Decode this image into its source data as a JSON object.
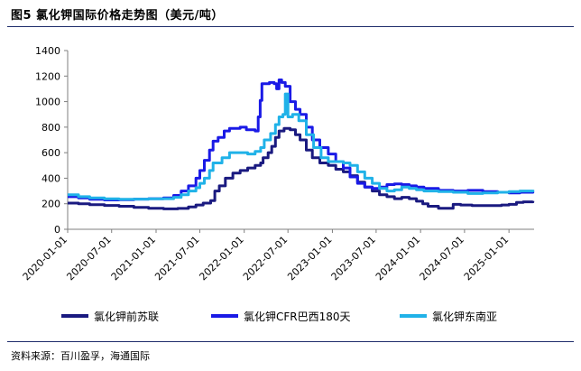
{
  "figure_title": "图5  氯化钾国际价格走势图（美元/吨）",
  "source_text": "资料来源：百川盈孚，海通国际",
  "chart_data": {
    "type": "line",
    "title": "",
    "xlabel": "",
    "ylabel": "",
    "ylim": [
      0,
      1400
    ],
    "yticks": [
      0,
      200,
      400,
      600,
      800,
      1000,
      1200,
      1400
    ],
    "xlim": [
      "2020-01-01",
      "2025-04-15"
    ],
    "xticks": [
      "2020-01-01",
      "2020-07-01",
      "2021-01-01",
      "2021-07-01",
      "2022-01-01",
      "2022-07-01",
      "2023-01-01",
      "2023-07-01",
      "2024-01-01",
      "2024-07-01",
      "2025-01-01"
    ],
    "grid": false,
    "legend_position": "bottom",
    "series": [
      {
        "name": "氯化钾前苏联",
        "color": "#1a1a80",
        "points": [
          [
            "2020-01-01",
            205
          ],
          [
            "2020-02-15",
            200
          ],
          [
            "2020-04-01",
            192
          ],
          [
            "2020-06-01",
            187
          ],
          [
            "2020-08-01",
            180
          ],
          [
            "2020-10-01",
            172
          ],
          [
            "2020-12-01",
            165
          ],
          [
            "2021-02-01",
            160
          ],
          [
            "2021-04-01",
            163
          ],
          [
            "2021-05-15",
            175
          ],
          [
            "2021-06-15",
            190
          ],
          [
            "2021-07-15",
            205
          ],
          [
            "2021-08-15",
            225
          ],
          [
            "2021-09-01",
            300
          ],
          [
            "2021-09-20",
            340
          ],
          [
            "2021-10-15",
            400
          ],
          [
            "2021-11-15",
            440
          ],
          [
            "2021-12-15",
            460
          ],
          [
            "2022-01-15",
            480
          ],
          [
            "2022-02-15",
            500
          ],
          [
            "2022-03-10",
            520
          ],
          [
            "2022-03-20",
            560
          ],
          [
            "2022-04-10",
            600
          ],
          [
            "2022-04-25",
            650
          ],
          [
            "2022-05-10",
            720
          ],
          [
            "2022-05-25",
            770
          ],
          [
            "2022-06-15",
            790
          ],
          [
            "2022-07-10",
            780
          ],
          [
            "2022-08-01",
            740
          ],
          [
            "2022-08-20",
            700
          ],
          [
            "2022-09-15",
            620
          ],
          [
            "2022-10-10",
            560
          ],
          [
            "2022-11-10",
            520
          ],
          [
            "2022-12-15",
            500
          ],
          [
            "2023-01-15",
            470
          ],
          [
            "2023-02-15",
            450
          ],
          [
            "2023-03-15",
            420
          ],
          [
            "2023-04-15",
            370
          ],
          [
            "2023-05-15",
            330
          ],
          [
            "2023-06-15",
            300
          ],
          [
            "2023-07-15",
            270
          ],
          [
            "2023-08-15",
            255
          ],
          [
            "2023-09-15",
            240
          ],
          [
            "2023-10-15",
            250
          ],
          [
            "2023-11-15",
            240
          ],
          [
            "2023-12-15",
            220
          ],
          [
            "2024-01-10",
            200
          ],
          [
            "2024-02-01",
            180
          ],
          [
            "2024-03-15",
            165
          ],
          [
            "2024-05-01",
            165
          ],
          [
            "2024-05-15",
            195
          ],
          [
            "2024-06-15",
            190
          ],
          [
            "2024-08-01",
            185
          ],
          [
            "2024-10-01",
            185
          ],
          [
            "2024-12-01",
            190
          ],
          [
            "2025-01-01",
            195
          ],
          [
            "2025-02-01",
            210
          ],
          [
            "2025-03-01",
            215
          ],
          [
            "2025-04-10",
            222
          ]
        ]
      },
      {
        "name": "氯化钾CFR巴西180天",
        "color": "#1a1ae6",
        "points": [
          [
            "2020-01-01",
            255
          ],
          [
            "2020-02-15",
            245
          ],
          [
            "2020-04-01",
            235
          ],
          [
            "2020-06-01",
            230
          ],
          [
            "2020-08-01",
            232
          ],
          [
            "2020-10-01",
            236
          ],
          [
            "2020-12-01",
            240
          ],
          [
            "2021-02-01",
            245
          ],
          [
            "2021-03-15",
            265
          ],
          [
            "2021-04-15",
            300
          ],
          [
            "2021-05-15",
            340
          ],
          [
            "2021-06-15",
            400
          ],
          [
            "2021-07-01",
            460
          ],
          [
            "2021-07-20",
            540
          ],
          [
            "2021-08-10",
            620
          ],
          [
            "2021-08-25",
            690
          ],
          [
            "2021-09-15",
            720
          ],
          [
            "2021-10-10",
            770
          ],
          [
            "2021-11-01",
            790
          ],
          [
            "2021-12-15",
            800
          ],
          [
            "2022-01-10",
            780
          ],
          [
            "2022-02-15",
            770
          ],
          [
            "2022-02-28",
            880
          ],
          [
            "2022-03-08",
            1010
          ],
          [
            "2022-03-15",
            1140
          ],
          [
            "2022-04-15",
            1150
          ],
          [
            "2022-05-05",
            1140
          ],
          [
            "2022-05-15",
            1100
          ],
          [
            "2022-05-25",
            1170
          ],
          [
            "2022-06-05",
            1150
          ],
          [
            "2022-06-20",
            1120
          ],
          [
            "2022-07-10",
            1000
          ],
          [
            "2022-08-01",
            940
          ],
          [
            "2022-08-20",
            900
          ],
          [
            "2022-09-15",
            800
          ],
          [
            "2022-10-10",
            700
          ],
          [
            "2022-11-10",
            640
          ],
          [
            "2022-12-15",
            590
          ],
          [
            "2023-01-15",
            530
          ],
          [
            "2023-02-15",
            480
          ],
          [
            "2023-03-15",
            410
          ],
          [
            "2023-04-15",
            360
          ],
          [
            "2023-05-15",
            330
          ],
          [
            "2023-06-15",
            320
          ],
          [
            "2023-07-15",
            330
          ],
          [
            "2023-08-15",
            350
          ],
          [
            "2023-09-15",
            355
          ],
          [
            "2023-10-15",
            350
          ],
          [
            "2023-11-15",
            340
          ],
          [
            "2023-12-15",
            330
          ],
          [
            "2024-01-15",
            320
          ],
          [
            "2024-03-15",
            305
          ],
          [
            "2024-05-15",
            300
          ],
          [
            "2024-07-15",
            305
          ],
          [
            "2024-09-15",
            295
          ],
          [
            "2024-11-15",
            290
          ],
          [
            "2025-01-01",
            285
          ],
          [
            "2025-02-15",
            290
          ],
          [
            "2025-04-10",
            295
          ]
        ]
      },
      {
        "name": "氯化钾东南亚",
        "color": "#20b2e8",
        "points": [
          [
            "2020-01-01",
            270
          ],
          [
            "2020-02-15",
            255
          ],
          [
            "2020-04-01",
            245
          ],
          [
            "2020-06-01",
            238
          ],
          [
            "2020-08-01",
            235
          ],
          [
            "2020-10-01",
            236
          ],
          [
            "2020-12-01",
            238
          ],
          [
            "2021-02-01",
            240
          ],
          [
            "2021-03-15",
            250
          ],
          [
            "2021-04-15",
            270
          ],
          [
            "2021-05-15",
            300
          ],
          [
            "2021-06-15",
            325
          ],
          [
            "2021-07-01",
            360
          ],
          [
            "2021-07-20",
            400
          ],
          [
            "2021-08-10",
            460
          ],
          [
            "2021-08-25",
            520
          ],
          [
            "2021-10-01",
            560
          ],
          [
            "2021-11-01",
            600
          ],
          [
            "2021-12-15",
            600
          ],
          [
            "2022-01-15",
            590
          ],
          [
            "2022-02-15",
            610
          ],
          [
            "2022-03-10",
            640
          ],
          [
            "2022-03-25",
            700
          ],
          [
            "2022-04-20",
            750
          ],
          [
            "2022-05-10",
            820
          ],
          [
            "2022-05-25",
            880
          ],
          [
            "2022-06-10",
            900
          ],
          [
            "2022-06-20",
            1060
          ],
          [
            "2022-07-01",
            880
          ],
          [
            "2022-07-20",
            900
          ],
          [
            "2022-08-15",
            850
          ],
          [
            "2022-09-15",
            740
          ],
          [
            "2022-10-15",
            640
          ],
          [
            "2022-11-15",
            560
          ],
          [
            "2022-12-15",
            530
          ],
          [
            "2023-01-15",
            530
          ],
          [
            "2023-02-15",
            520
          ],
          [
            "2023-03-15",
            500
          ],
          [
            "2023-04-15",
            450
          ],
          [
            "2023-05-15",
            400
          ],
          [
            "2023-06-15",
            360
          ],
          [
            "2023-07-15",
            320
          ],
          [
            "2023-08-15",
            300
          ],
          [
            "2023-09-15",
            310
          ],
          [
            "2023-10-15",
            330
          ],
          [
            "2023-11-15",
            320
          ],
          [
            "2023-12-15",
            310
          ],
          [
            "2024-01-15",
            300
          ],
          [
            "2024-03-15",
            295
          ],
          [
            "2024-05-15",
            290
          ],
          [
            "2024-07-15",
            280
          ],
          [
            "2024-09-15",
            285
          ],
          [
            "2024-11-15",
            290
          ],
          [
            "2025-01-01",
            295
          ],
          [
            "2025-02-15",
            300
          ],
          [
            "2025-04-10",
            310
          ]
        ]
      }
    ]
  }
}
